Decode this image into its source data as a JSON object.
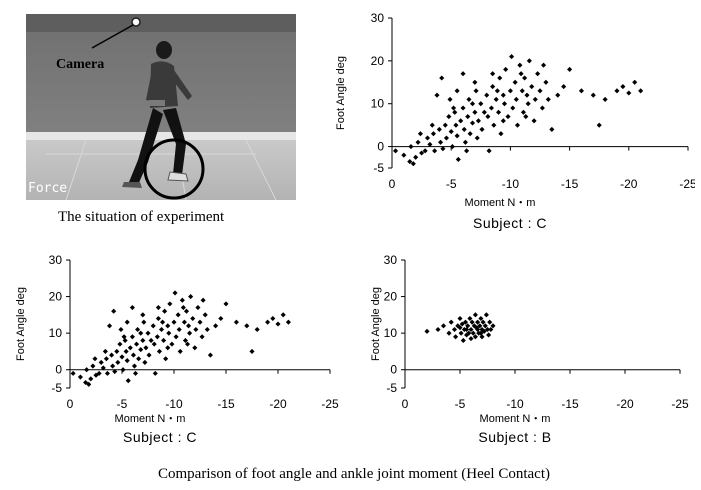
{
  "photo": {
    "camera_label": "Camera",
    "force_label": "Force",
    "caption": "The situation of experiment"
  },
  "figure_caption": "Comparison of foot angle and ankle joint moment (Heel Contact)",
  "chart_data": [
    {
      "type": "scatter",
      "subject_label": "Subject : C",
      "xlabel": "Moment  N・m",
      "ylabel": "Foot Angle  deg",
      "xlim": [
        0,
        -25
      ],
      "ylim": [
        -5,
        30
      ],
      "xticks": [
        0,
        -5,
        -10,
        -15,
        -20,
        -25
      ],
      "yticks": [
        -5,
        0,
        10,
        20,
        30
      ],
      "grid": false,
      "points": [
        {
          "x": -0.3,
          "y": -1
        },
        {
          "x": -1.0,
          "y": -2
        },
        {
          "x": -1.5,
          "y": -3.5
        },
        {
          "x": -1.8,
          "y": -4
        },
        {
          "x": -2.0,
          "y": -2.5
        },
        {
          "x": -1.6,
          "y": 0
        },
        {
          "x": -2.2,
          "y": 1
        },
        {
          "x": -2.5,
          "y": -1.5
        },
        {
          "x": -3.0,
          "y": 2
        },
        {
          "x": -3.2,
          "y": 0.5
        },
        {
          "x": -3.5,
          "y": 3
        },
        {
          "x": -3.6,
          "y": -1
        },
        {
          "x": -4.0,
          "y": 4
        },
        {
          "x": -4.1,
          "y": 1
        },
        {
          "x": -4.3,
          "y": -0.5
        },
        {
          "x": -4.5,
          "y": 5
        },
        {
          "x": -4.6,
          "y": 2
        },
        {
          "x": -4.8,
          "y": 7
        },
        {
          "x": -5.0,
          "y": 3.5
        },
        {
          "x": -5.1,
          "y": 0
        },
        {
          "x": -5.3,
          "y": 8
        },
        {
          "x": -5.4,
          "y": 5
        },
        {
          "x": -5.5,
          "y": 2.5
        },
        {
          "x": -5.6,
          "y": -3
        },
        {
          "x": -5.8,
          "y": 6
        },
        {
          "x": -6.0,
          "y": 9
        },
        {
          "x": -6.1,
          "y": 4
        },
        {
          "x": -6.2,
          "y": 1
        },
        {
          "x": -6.4,
          "y": 7
        },
        {
          "x": -6.5,
          "y": 11
        },
        {
          "x": -6.6,
          "y": 3
        },
        {
          "x": -6.8,
          "y": 5.5
        },
        {
          "x": -7.0,
          "y": 8
        },
        {
          "x": -7.1,
          "y": 13
        },
        {
          "x": -7.2,
          "y": 2
        },
        {
          "x": -7.3,
          "y": 6
        },
        {
          "x": -7.5,
          "y": 10
        },
        {
          "x": -7.6,
          "y": 4
        },
        {
          "x": -7.8,
          "y": 8
        },
        {
          "x": -8.0,
          "y": 12
        },
        {
          "x": -8.1,
          "y": 7
        },
        {
          "x": -8.2,
          "y": -1
        },
        {
          "x": -8.4,
          "y": 9
        },
        {
          "x": -8.5,
          "y": 14
        },
        {
          "x": -8.6,
          "y": 5
        },
        {
          "x": -8.8,
          "y": 11
        },
        {
          "x": -9.0,
          "y": 8
        },
        {
          "x": -9.1,
          "y": 16
        },
        {
          "x": -9.2,
          "y": 3
        },
        {
          "x": -9.4,
          "y": 12
        },
        {
          "x": -9.5,
          "y": 10
        },
        {
          "x": -9.6,
          "y": 18
        },
        {
          "x": -9.8,
          "y": 7
        },
        {
          "x": -10.0,
          "y": 13
        },
        {
          "x": -10.1,
          "y": 21
        },
        {
          "x": -10.2,
          "y": 9
        },
        {
          "x": -10.4,
          "y": 15
        },
        {
          "x": -10.5,
          "y": 11
        },
        {
          "x": -10.6,
          "y": 5
        },
        {
          "x": -10.8,
          "y": 19
        },
        {
          "x": -11.0,
          "y": 13
        },
        {
          "x": -11.1,
          "y": 8
        },
        {
          "x": -11.2,
          "y": 16
        },
        {
          "x": -11.4,
          "y": 12
        },
        {
          "x": -11.5,
          "y": 10
        },
        {
          "x": -11.6,
          "y": 20
        },
        {
          "x": -11.8,
          "y": 14
        },
        {
          "x": -12.0,
          "y": 6
        },
        {
          "x": -12.1,
          "y": 11
        },
        {
          "x": -12.3,
          "y": 17
        },
        {
          "x": -12.5,
          "y": 13
        },
        {
          "x": -12.7,
          "y": 9
        },
        {
          "x": -13.0,
          "y": 15
        },
        {
          "x": -13.2,
          "y": 11
        },
        {
          "x": -13.5,
          "y": 4
        },
        {
          "x": -14.0,
          "y": 12
        },
        {
          "x": -14.5,
          "y": 14
        },
        {
          "x": -15.0,
          "y": 18
        },
        {
          "x": -16.0,
          "y": 13
        },
        {
          "x": -17.0,
          "y": 12
        },
        {
          "x": -17.5,
          "y": 5
        },
        {
          "x": -18.0,
          "y": 11
        },
        {
          "x": -19.0,
          "y": 13
        },
        {
          "x": -19.5,
          "y": 14
        },
        {
          "x": -20.0,
          "y": 12.5
        },
        {
          "x": -20.5,
          "y": 15
        },
        {
          "x": -21.0,
          "y": 13
        },
        {
          "x": -6.0,
          "y": 17
        },
        {
          "x": -4.2,
          "y": 16
        },
        {
          "x": -3.8,
          "y": 12
        },
        {
          "x": -5.5,
          "y": 13
        },
        {
          "x": -7.0,
          "y": 15
        },
        {
          "x": -8.5,
          "y": 17
        },
        {
          "x": -2.8,
          "y": -1
        },
        {
          "x": -3.4,
          "y": 5
        },
        {
          "x": -5.2,
          "y": 9
        },
        {
          "x": -6.8,
          "y": 10
        },
        {
          "x": -9.4,
          "y": 6
        },
        {
          "x": -10.9,
          "y": 17
        },
        {
          "x": -11.3,
          "y": 7
        },
        {
          "x": -12.8,
          "y": 19
        },
        {
          "x": -6.3,
          "y": -1
        },
        {
          "x": -4.9,
          "y": 11
        },
        {
          "x": -8.9,
          "y": 13
        },
        {
          "x": -2.4,
          "y": 3
        }
      ]
    },
    {
      "type": "scatter",
      "subject_label": "Subject : C",
      "xlabel": "Moment  N・m",
      "ylabel": "Foot Angle  deg",
      "xlim": [
        0,
        -25
      ],
      "ylim": [
        -5,
        30
      ],
      "xticks": [
        0,
        -5,
        -10,
        -15,
        -20,
        -25
      ],
      "yticks": [
        -5,
        0,
        10,
        20,
        30
      ],
      "grid": false,
      "points": [
        {
          "x": -0.3,
          "y": -1
        },
        {
          "x": -1.0,
          "y": -2
        },
        {
          "x": -1.5,
          "y": -3.5
        },
        {
          "x": -1.8,
          "y": -4
        },
        {
          "x": -2.0,
          "y": -2.5
        },
        {
          "x": -1.6,
          "y": 0
        },
        {
          "x": -2.2,
          "y": 1
        },
        {
          "x": -2.5,
          "y": -1.5
        },
        {
          "x": -3.0,
          "y": 2
        },
        {
          "x": -3.2,
          "y": 0.5
        },
        {
          "x": -3.5,
          "y": 3
        },
        {
          "x": -3.6,
          "y": -1
        },
        {
          "x": -4.0,
          "y": 4
        },
        {
          "x": -4.1,
          "y": 1
        },
        {
          "x": -4.3,
          "y": -0.5
        },
        {
          "x": -4.5,
          "y": 5
        },
        {
          "x": -4.6,
          "y": 2
        },
        {
          "x": -4.8,
          "y": 7
        },
        {
          "x": -5.0,
          "y": 3.5
        },
        {
          "x": -5.1,
          "y": 0
        },
        {
          "x": -5.3,
          "y": 8
        },
        {
          "x": -5.4,
          "y": 5
        },
        {
          "x": -5.5,
          "y": 2.5
        },
        {
          "x": -5.6,
          "y": -3
        },
        {
          "x": -5.8,
          "y": 6
        },
        {
          "x": -6.0,
          "y": 9
        },
        {
          "x": -6.1,
          "y": 4
        },
        {
          "x": -6.2,
          "y": 1
        },
        {
          "x": -6.4,
          "y": 7
        },
        {
          "x": -6.5,
          "y": 11
        },
        {
          "x": -6.6,
          "y": 3
        },
        {
          "x": -6.8,
          "y": 5.5
        },
        {
          "x": -7.0,
          "y": 8
        },
        {
          "x": -7.1,
          "y": 13
        },
        {
          "x": -7.2,
          "y": 2
        },
        {
          "x": -7.3,
          "y": 6
        },
        {
          "x": -7.5,
          "y": 10
        },
        {
          "x": -7.6,
          "y": 4
        },
        {
          "x": -7.8,
          "y": 8
        },
        {
          "x": -8.0,
          "y": 12
        },
        {
          "x": -8.1,
          "y": 7
        },
        {
          "x": -8.2,
          "y": -1
        },
        {
          "x": -8.4,
          "y": 9
        },
        {
          "x": -8.5,
          "y": 14
        },
        {
          "x": -8.6,
          "y": 5
        },
        {
          "x": -8.8,
          "y": 11
        },
        {
          "x": -9.0,
          "y": 8
        },
        {
          "x": -9.1,
          "y": 16
        },
        {
          "x": -9.2,
          "y": 3
        },
        {
          "x": -9.4,
          "y": 12
        },
        {
          "x": -9.5,
          "y": 10
        },
        {
          "x": -9.6,
          "y": 18
        },
        {
          "x": -9.8,
          "y": 7
        },
        {
          "x": -10.0,
          "y": 13
        },
        {
          "x": -10.1,
          "y": 21
        },
        {
          "x": -10.2,
          "y": 9
        },
        {
          "x": -10.4,
          "y": 15
        },
        {
          "x": -10.5,
          "y": 11
        },
        {
          "x": -10.6,
          "y": 5
        },
        {
          "x": -10.8,
          "y": 19
        },
        {
          "x": -11.0,
          "y": 13
        },
        {
          "x": -11.1,
          "y": 8
        },
        {
          "x": -11.2,
          "y": 16
        },
        {
          "x": -11.4,
          "y": 12
        },
        {
          "x": -11.5,
          "y": 10
        },
        {
          "x": -11.6,
          "y": 20
        },
        {
          "x": -11.8,
          "y": 14
        },
        {
          "x": -12.0,
          "y": 6
        },
        {
          "x": -12.1,
          "y": 11
        },
        {
          "x": -12.3,
          "y": 17
        },
        {
          "x": -12.5,
          "y": 13
        },
        {
          "x": -12.7,
          "y": 9
        },
        {
          "x": -13.0,
          "y": 15
        },
        {
          "x": -13.2,
          "y": 11
        },
        {
          "x": -13.5,
          "y": 4
        },
        {
          "x": -14.0,
          "y": 12
        },
        {
          "x": -14.5,
          "y": 14
        },
        {
          "x": -15.0,
          "y": 18
        },
        {
          "x": -16.0,
          "y": 13
        },
        {
          "x": -17.0,
          "y": 12
        },
        {
          "x": -17.5,
          "y": 5
        },
        {
          "x": -18.0,
          "y": 11
        },
        {
          "x": -19.0,
          "y": 13
        },
        {
          "x": -19.5,
          "y": 14
        },
        {
          "x": -20.0,
          "y": 12.5
        },
        {
          "x": -20.5,
          "y": 15
        },
        {
          "x": -21.0,
          "y": 13
        },
        {
          "x": -6.0,
          "y": 17
        },
        {
          "x": -4.2,
          "y": 16
        },
        {
          "x": -3.8,
          "y": 12
        },
        {
          "x": -5.5,
          "y": 13
        },
        {
          "x": -7.0,
          "y": 15
        },
        {
          "x": -8.5,
          "y": 17
        },
        {
          "x": -2.8,
          "y": -1
        },
        {
          "x": -3.4,
          "y": 5
        },
        {
          "x": -5.2,
          "y": 9
        },
        {
          "x": -6.8,
          "y": 10
        },
        {
          "x": -9.4,
          "y": 6
        },
        {
          "x": -10.9,
          "y": 17
        },
        {
          "x": -11.3,
          "y": 7
        },
        {
          "x": -12.8,
          "y": 19
        },
        {
          "x": -6.3,
          "y": -1
        },
        {
          "x": -4.9,
          "y": 11
        },
        {
          "x": -8.9,
          "y": 13
        },
        {
          "x": -2.4,
          "y": 3
        }
      ]
    },
    {
      "type": "scatter",
      "subject_label": "Subject : B",
      "xlabel": "Moment  N・m",
      "ylabel": "Foot Angle  deg",
      "xlim": [
        0,
        -25
      ],
      "ylim": [
        -5,
        30
      ],
      "xticks": [
        0,
        -5,
        -10,
        -15,
        -20,
        -25
      ],
      "yticks": [
        -5,
        0,
        10,
        20,
        30
      ],
      "grid": false,
      "points": [
        {
          "x": -2.0,
          "y": 10.5
        },
        {
          "x": -3.0,
          "y": 11
        },
        {
          "x": -3.5,
          "y": 12
        },
        {
          "x": -4.0,
          "y": 10
        },
        {
          "x": -4.2,
          "y": 13
        },
        {
          "x": -4.5,
          "y": 11
        },
        {
          "x": -4.6,
          "y": 9
        },
        {
          "x": -4.8,
          "y": 12
        },
        {
          "x": -5.0,
          "y": 14
        },
        {
          "x": -5.1,
          "y": 10
        },
        {
          "x": -5.2,
          "y": 12.5
        },
        {
          "x": -5.3,
          "y": 8
        },
        {
          "x": -5.4,
          "y": 11
        },
        {
          "x": -5.5,
          "y": 13
        },
        {
          "x": -5.6,
          "y": 9.5
        },
        {
          "x": -5.7,
          "y": 12
        },
        {
          "x": -5.8,
          "y": 10
        },
        {
          "x": -5.9,
          "y": 14
        },
        {
          "x": -6.0,
          "y": 11
        },
        {
          "x": -6.0,
          "y": 8.5
        },
        {
          "x": -6.1,
          "y": 13
        },
        {
          "x": -6.2,
          "y": 10
        },
        {
          "x": -6.3,
          "y": 12
        },
        {
          "x": -6.4,
          "y": 15
        },
        {
          "x": -6.4,
          "y": 9
        },
        {
          "x": -6.5,
          "y": 11.5
        },
        {
          "x": -6.6,
          "y": 13
        },
        {
          "x": -6.7,
          "y": 10
        },
        {
          "x": -6.8,
          "y": 12
        },
        {
          "x": -6.9,
          "y": 14
        },
        {
          "x": -7.0,
          "y": 9
        },
        {
          "x": -7.0,
          "y": 11
        },
        {
          "x": -7.1,
          "y": 13
        },
        {
          "x": -7.2,
          "y": 10.5
        },
        {
          "x": -7.3,
          "y": 12
        },
        {
          "x": -7.4,
          "y": 15
        },
        {
          "x": -7.5,
          "y": 11
        },
        {
          "x": -7.6,
          "y": 9.5
        },
        {
          "x": -7.7,
          "y": 13
        },
        {
          "x": -7.8,
          "y": 11
        },
        {
          "x": -8.0,
          "y": 12
        },
        {
          "x": -5.6,
          "y": 11
        },
        {
          "x": -6.6,
          "y": 11
        },
        {
          "x": -5.0,
          "y": 11.5
        },
        {
          "x": -6.9,
          "y": 10
        }
      ]
    }
  ]
}
